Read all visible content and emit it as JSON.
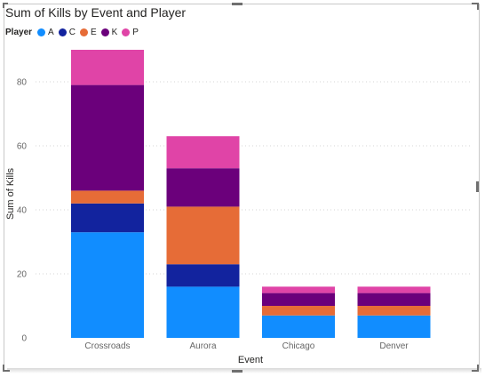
{
  "chart_data": {
    "type": "bar",
    "stacked": true,
    "title": "Sum of Kills by Event and Player",
    "xlabel": "Event",
    "ylabel": "Sum of Kills",
    "legend_title": "Player",
    "legend_position": "top-left",
    "grid": true,
    "ylim": [
      0,
      90
    ],
    "yticks": [
      0,
      20,
      40,
      60,
      80
    ],
    "categories": [
      "Crossroads",
      "Aurora",
      "Chicago",
      "Denver"
    ],
    "series": [
      {
        "name": "A",
        "color": "#118DFF",
        "values": [
          33,
          16,
          7,
          7
        ]
      },
      {
        "name": "C",
        "color": "#12239E",
        "values": [
          9,
          7,
          0,
          0
        ]
      },
      {
        "name": "E",
        "color": "#E66C37",
        "values": [
          4,
          18,
          3,
          3
        ]
      },
      {
        "name": "K",
        "color": "#6B007B",
        "values": [
          33,
          12,
          4,
          4
        ]
      },
      {
        "name": "P",
        "color": "#E044A7",
        "values": [
          11,
          10,
          2,
          2
        ]
      }
    ]
  }
}
